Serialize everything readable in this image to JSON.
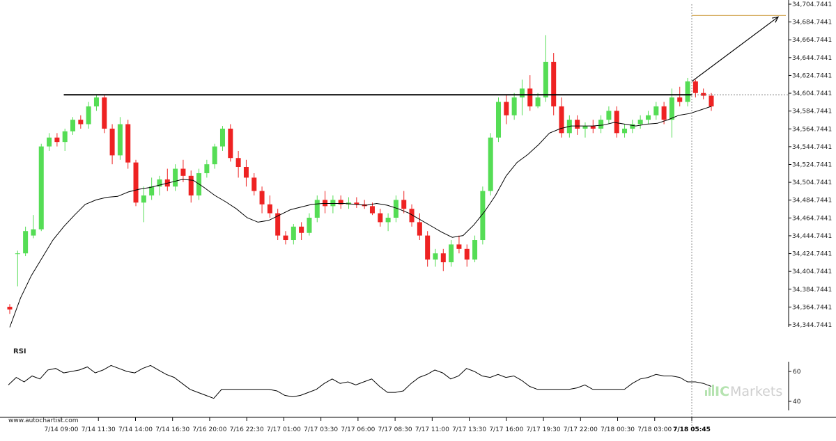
{
  "chart_data": {
    "type": "candlestick",
    "price_axis": {
      "ticks": [
        "34,344.7441",
        "34,364.7441",
        "34,384.7441",
        "34,404.7441",
        "34,424.7441",
        "34,444.7441",
        "34,464.7441",
        "34,484.7441",
        "34,504.7441",
        "34,524.7441",
        "34,544.7441",
        "34,564.7441",
        "34,584.7441",
        "34,604.7441",
        "34,624.7441",
        "34,644.7441",
        "34,664.7441",
        "34,684.7441",
        "34,704.7441"
      ],
      "min": 34344.7441,
      "max": 34704.7441
    },
    "time_axis": {
      "ticks": [
        "7/14 09:00",
        "7/14 11:30",
        "7/14 14:00",
        "7/14 16:30",
        "7/16 20:00",
        "7/16 22:30",
        "7/17 01:00",
        "7/17 03:30",
        "7/17 06:00",
        "7/17 08:30",
        "7/17 11:00",
        "7/17 13:30",
        "7/17 16:00",
        "7/17 19:30",
        "7/17 22:00",
        "7/18 00:30",
        "7/18 03:00",
        "7/18 05:45"
      ],
      "highlight": "7/18 05:45"
    },
    "resistance_level": 34603,
    "forecast_target": 34692,
    "moving_average": [
      34342,
      34375,
      34400,
      34420,
      34440,
      34455,
      34468,
      34480,
      34485,
      34488,
      34489,
      34494,
      34497,
      34499,
      34502,
      34505,
      34508,
      34507,
      34499,
      34490,
      34483,
      34475,
      34465,
      34460,
      34462,
      34468,
      34474,
      34477,
      34480,
      34481,
      34481,
      34481,
      34480,
      34479,
      34481,
      34479,
      34475,
      34470,
      34463,
      34456,
      34449,
      34443,
      34445,
      34457,
      34472,
      34490,
      34512,
      34527,
      34536,
      34547,
      34560,
      34565,
      34568,
      34568,
      34568,
      34569,
      34572,
      34570,
      34568,
      34570,
      34571,
      34575,
      34580,
      34582,
      34586,
      34590
    ],
    "candles": [
      {
        "o": 34365,
        "h": 34368,
        "l": 34357,
        "c": 34362
      },
      {
        "o": 34425,
        "h": 34428,
        "l": 34388,
        "c": 34425
      },
      {
        "o": 34425,
        "h": 34455,
        "l": 34422,
        "c": 34450
      },
      {
        "o": 34445,
        "h": 34468,
        "l": 34442,
        "c": 34452
      },
      {
        "o": 34452,
        "h": 34548,
        "l": 34450,
        "c": 34545
      },
      {
        "o": 34545,
        "h": 34560,
        "l": 34540,
        "c": 34555
      },
      {
        "o": 34555,
        "h": 34560,
        "l": 34545,
        "c": 34550
      },
      {
        "o": 34550,
        "h": 34565,
        "l": 34540,
        "c": 34562
      },
      {
        "o": 34562,
        "h": 34578,
        "l": 34558,
        "c": 34575
      },
      {
        "o": 34575,
        "h": 34580,
        "l": 34565,
        "c": 34570
      },
      {
        "o": 34570,
        "h": 34595,
        "l": 34565,
        "c": 34590
      },
      {
        "o": 34590,
        "h": 34603,
        "l": 34585,
        "c": 34600
      },
      {
        "o": 34600,
        "h": 34603,
        "l": 34560,
        "c": 34565
      },
      {
        "o": 34565,
        "h": 34570,
        "l": 34525,
        "c": 34535
      },
      {
        "o": 34535,
        "h": 34578,
        "l": 34530,
        "c": 34570
      },
      {
        "o": 34570,
        "h": 34575,
        "l": 34520,
        "c": 34527
      },
      {
        "o": 34527,
        "h": 34530,
        "l": 34478,
        "c": 34482
      },
      {
        "o": 34482,
        "h": 34500,
        "l": 34460,
        "c": 34490
      },
      {
        "o": 34490,
        "h": 34510,
        "l": 34485,
        "c": 34500
      },
      {
        "o": 34500,
        "h": 34512,
        "l": 34490,
        "c": 34508
      },
      {
        "o": 34508,
        "h": 34520,
        "l": 34495,
        "c": 34500
      },
      {
        "o": 34500,
        "h": 34525,
        "l": 34495,
        "c": 34520
      },
      {
        "o": 34520,
        "h": 34530,
        "l": 34505,
        "c": 34512
      },
      {
        "o": 34512,
        "h": 34518,
        "l": 34482,
        "c": 34490
      },
      {
        "o": 34490,
        "h": 34520,
        "l": 34485,
        "c": 34515
      },
      {
        "o": 34515,
        "h": 34530,
        "l": 34510,
        "c": 34525
      },
      {
        "o": 34525,
        "h": 34548,
        "l": 34520,
        "c": 34545
      },
      {
        "o": 34545,
        "h": 34568,
        "l": 34540,
        "c": 34565
      },
      {
        "o": 34565,
        "h": 34570,
        "l": 34528,
        "c": 34532
      },
      {
        "o": 34532,
        "h": 34540,
        "l": 34510,
        "c": 34522
      },
      {
        "o": 34522,
        "h": 34530,
        "l": 34500,
        "c": 34510
      },
      {
        "o": 34510,
        "h": 34515,
        "l": 34490,
        "c": 34495
      },
      {
        "o": 34495,
        "h": 34500,
        "l": 34470,
        "c": 34480
      },
      {
        "o": 34480,
        "h": 34490,
        "l": 34465,
        "c": 34470
      },
      {
        "o": 34470,
        "h": 34475,
        "l": 34440,
        "c": 34445
      },
      {
        "o": 34445,
        "h": 34450,
        "l": 34435,
        "c": 34440
      },
      {
        "o": 34440,
        "h": 34458,
        "l": 34435,
        "c": 34455
      },
      {
        "o": 34455,
        "h": 34460,
        "l": 34440,
        "c": 34448
      },
      {
        "o": 34448,
        "h": 34470,
        "l": 34445,
        "c": 34465
      },
      {
        "o": 34465,
        "h": 34490,
        "l": 34460,
        "c": 34485
      },
      {
        "o": 34485,
        "h": 34495,
        "l": 34470,
        "c": 34478
      },
      {
        "o": 34478,
        "h": 34490,
        "l": 34470,
        "c": 34485
      },
      {
        "o": 34485,
        "h": 34490,
        "l": 34475,
        "c": 34480
      },
      {
        "o": 34480,
        "h": 34488,
        "l": 34475,
        "c": 34482
      },
      {
        "o": 34482,
        "h": 34488,
        "l": 34476,
        "c": 34480
      },
      {
        "o": 34480,
        "h": 34485,
        "l": 34475,
        "c": 34478
      },
      {
        "o": 34478,
        "h": 34482,
        "l": 34468,
        "c": 34470
      },
      {
        "o": 34470,
        "h": 34475,
        "l": 34455,
        "c": 34460
      },
      {
        "o": 34460,
        "h": 34470,
        "l": 34450,
        "c": 34465
      },
      {
        "o": 34465,
        "h": 34490,
        "l": 34460,
        "c": 34485
      },
      {
        "o": 34485,
        "h": 34495,
        "l": 34470,
        "c": 34475
      },
      {
        "o": 34475,
        "h": 34480,
        "l": 34455,
        "c": 34460
      },
      {
        "o": 34460,
        "h": 34470,
        "l": 34440,
        "c": 34445
      },
      {
        "o": 34445,
        "h": 34450,
        "l": 34410,
        "c": 34418
      },
      {
        "o": 34418,
        "h": 34430,
        "l": 34410,
        "c": 34425
      },
      {
        "o": 34425,
        "h": 34430,
        "l": 34405,
        "c": 34415
      },
      {
        "o": 34415,
        "h": 34440,
        "l": 34410,
        "c": 34435
      },
      {
        "o": 34435,
        "h": 34445,
        "l": 34425,
        "c": 34430
      },
      {
        "o": 34430,
        "h": 34435,
        "l": 34410,
        "c": 34418
      },
      {
        "o": 34418,
        "h": 34445,
        "l": 34415,
        "c": 34440
      },
      {
        "o": 34440,
        "h": 34500,
        "l": 34435,
        "c": 34495
      },
      {
        "o": 34495,
        "h": 34560,
        "l": 34490,
        "c": 34555
      },
      {
        "o": 34555,
        "h": 34600,
        "l": 34550,
        "c": 34595
      },
      {
        "o": 34595,
        "h": 34603,
        "l": 34570,
        "c": 34580
      },
      {
        "o": 34580,
        "h": 34605,
        "l": 34575,
        "c": 34600
      },
      {
        "o": 34600,
        "h": 34620,
        "l": 34580,
        "c": 34610
      },
      {
        "o": 34610,
        "h": 34625,
        "l": 34585,
        "c": 34590
      },
      {
        "o": 34590,
        "h": 34605,
        "l": 34588,
        "c": 34600
      },
      {
        "o": 34600,
        "h": 34670,
        "l": 34595,
        "c": 34640
      },
      {
        "o": 34640,
        "h": 34650,
        "l": 34580,
        "c": 34590
      },
      {
        "o": 34590,
        "h": 34600,
        "l": 34555,
        "c": 34560
      },
      {
        "o": 34560,
        "h": 34580,
        "l": 34555,
        "c": 34575
      },
      {
        "o": 34575,
        "h": 34580,
        "l": 34558,
        "c": 34565
      },
      {
        "o": 34565,
        "h": 34572,
        "l": 34555,
        "c": 34568
      },
      {
        "o": 34568,
        "h": 34575,
        "l": 34560,
        "c": 34565
      },
      {
        "o": 34565,
        "h": 34580,
        "l": 34560,
        "c": 34575
      },
      {
        "o": 34575,
        "h": 34590,
        "l": 34570,
        "c": 34585
      },
      {
        "o": 34585,
        "h": 34590,
        "l": 34555,
        "c": 34560
      },
      {
        "o": 34560,
        "h": 34570,
        "l": 34555,
        "c": 34565
      },
      {
        "o": 34565,
        "h": 34575,
        "l": 34560,
        "c": 34570
      },
      {
        "o": 34570,
        "h": 34580,
        "l": 34565,
        "c": 34575
      },
      {
        "o": 34575,
        "h": 34585,
        "l": 34570,
        "c": 34580
      },
      {
        "o": 34580,
        "h": 34595,
        "l": 34575,
        "c": 34590
      },
      {
        "o": 34590,
        "h": 34595,
        "l": 34570,
        "c": 34575
      },
      {
        "o": 34575,
        "h": 34610,
        "l": 34555,
        "c": 34600
      },
      {
        "o": 34600,
        "h": 34612,
        "l": 34590,
        "c": 34595
      },
      {
        "o": 34595,
        "h": 34622,
        "l": 34590,
        "c": 34618
      },
      {
        "o": 34618,
        "h": 34620,
        "l": 34600,
        "c": 34605
      },
      {
        "o": 34605,
        "h": 34610,
        "l": 34598,
        "c": 34602
      },
      {
        "o": 34602,
        "h": 34605,
        "l": 34585,
        "c": 34590
      }
    ],
    "rsi": {
      "title": "RSI",
      "ticks": [
        "60",
        "40"
      ],
      "min": 40,
      "max": 60,
      "values": [
        51,
        56,
        53,
        57,
        55,
        61,
        62,
        59,
        60,
        61,
        63,
        59,
        61,
        64,
        62,
        60,
        59,
        62,
        64,
        61,
        58,
        56,
        52,
        48,
        46,
        44,
        42,
        48,
        48,
        48,
        48,
        48,
        48,
        48,
        47,
        44,
        43,
        44,
        46,
        48,
        52,
        55,
        52,
        53,
        51,
        53,
        55,
        50,
        46,
        46,
        47,
        52,
        56,
        58,
        61,
        59,
        55,
        57,
        62,
        60,
        57,
        56,
        58,
        56,
        57,
        54,
        50,
        48,
        48,
        48,
        48,
        48,
        49,
        51,
        48,
        48,
        48,
        48,
        48,
        52,
        55,
        56,
        58,
        57,
        57,
        56,
        53,
        53,
        52,
        50
      ]
    },
    "xlabel": "",
    "ylabel": "",
    "grid": false,
    "legend": "none"
  },
  "credit": "www.autochartist.com",
  "brand": {
    "prefix": "IC",
    "name": "Markets"
  },
  "colors": {
    "bull": "#55dd55",
    "bear": "#ee2222",
    "ma": "#000000",
    "resistance": "#000000",
    "target": "#cc9a3a",
    "forecast": "#000000",
    "rsi_line": "#000000",
    "axis": "#000000"
  }
}
